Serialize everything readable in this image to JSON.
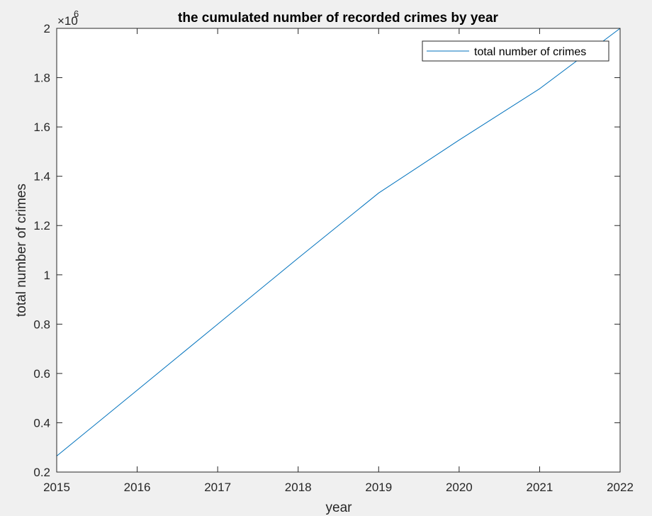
{
  "chart_data": {
    "type": "line",
    "title": "the cumulated number of recorded crimes by year",
    "xlabel": "year",
    "ylabel": "total number of crimes",
    "y_exponent_prefix": "×10",
    "y_exponent_power": "6",
    "xlim": [
      2015,
      2022
    ],
    "ylim": [
      0.2,
      2.0
    ],
    "y_scale_factor": 1000000,
    "x_ticks": [
      2015,
      2016,
      2017,
      2018,
      2019,
      2020,
      2021,
      2022
    ],
    "x_tick_labels": [
      "2015",
      "2016",
      "2017",
      "2018",
      "2019",
      "2020",
      "2021",
      "2022"
    ],
    "y_ticks": [
      0.2,
      0.4,
      0.6,
      0.8,
      1.0,
      1.2,
      1.4,
      1.6,
      1.8,
      2.0
    ],
    "y_tick_labels": [
      "0.2",
      "0.4",
      "0.6",
      "0.8",
      "1",
      "1.2",
      "1.4",
      "1.6",
      "1.8",
      "2"
    ],
    "grid": false,
    "legend_position": "top-right",
    "series": [
      {
        "name": "total number of crimes",
        "color": "#0072bd",
        "x": [
          2015,
          2016,
          2017,
          2018,
          2019,
          2020,
          2021,
          2022
        ],
        "y": [
          0.265,
          0.532,
          0.8,
          1.068,
          1.332,
          1.547,
          1.755,
          2.0
        ]
      }
    ]
  }
}
